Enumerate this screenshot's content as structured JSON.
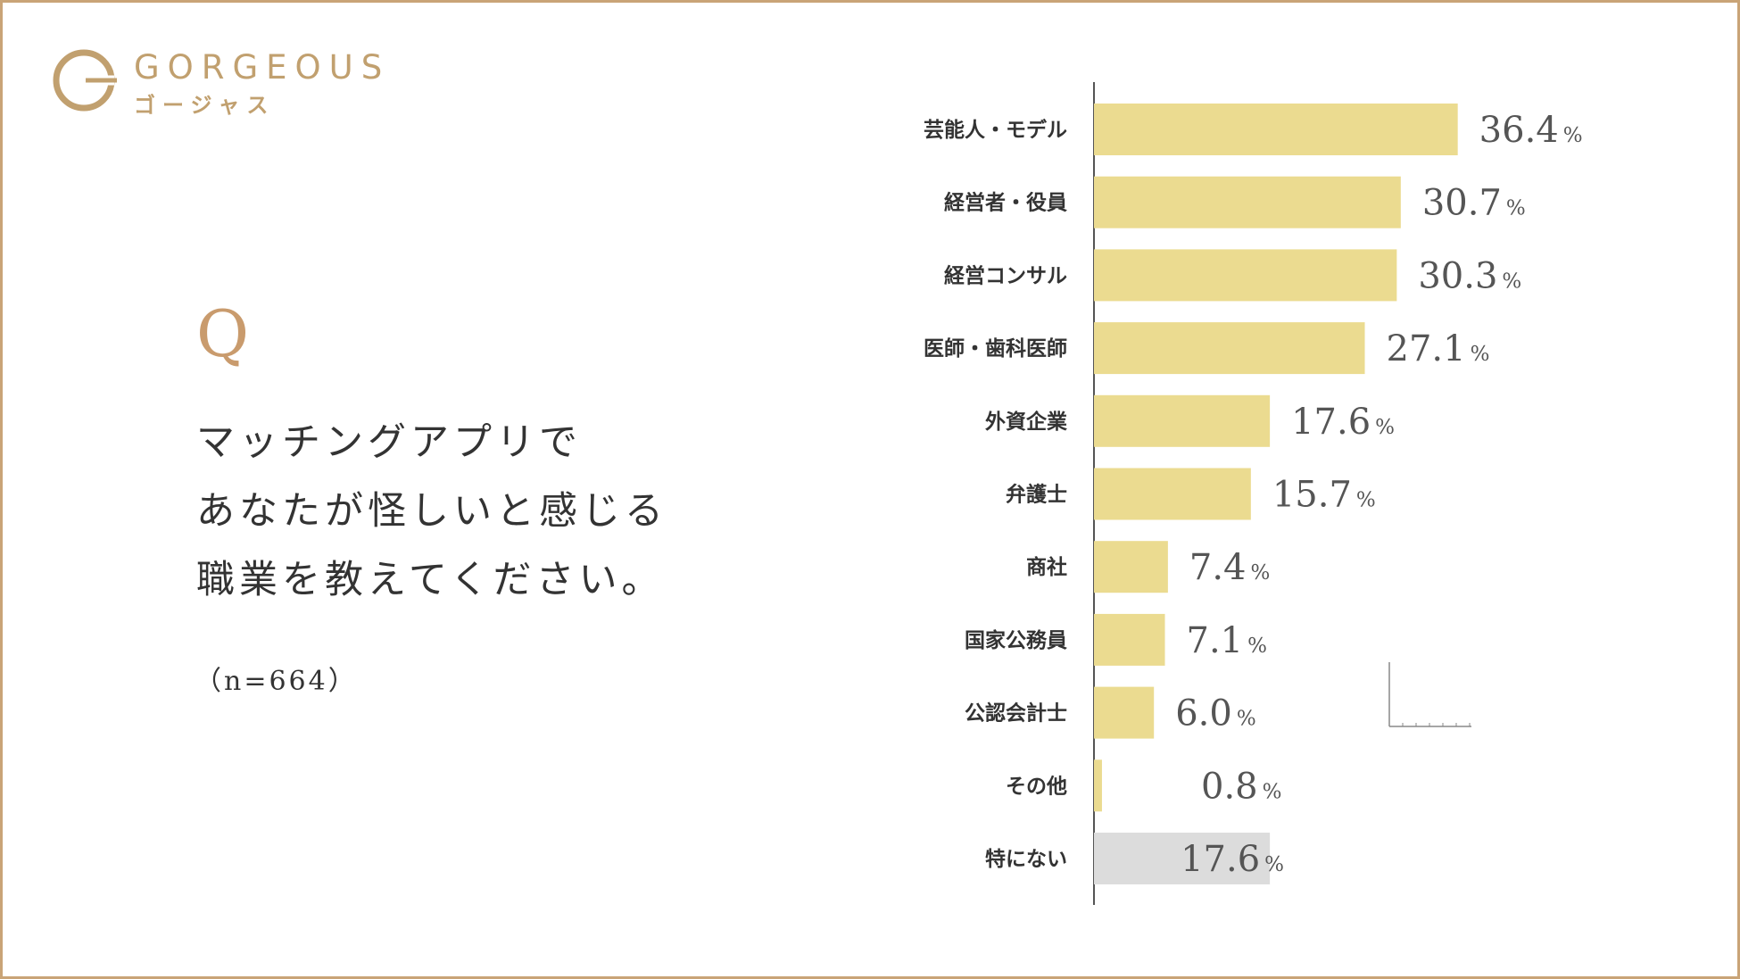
{
  "brand": {
    "name_en": "GORGEOUS",
    "name_ja": "ゴージャス",
    "logo_icon": "g-circle-logo-icon",
    "color": "#c1a06f"
  },
  "question": {
    "mark": "Q",
    "lines": [
      "マッチングアプリで",
      "あなたが怪しいと感じる",
      "職業を教えてください。"
    ],
    "sample": "（n=664）"
  },
  "colors": {
    "frame": "#c9a477",
    "bar": "#ebdb90",
    "bar_none": "#dcdcdc",
    "q_mark": "#c99b6d"
  },
  "chart_data": {
    "type": "bar",
    "orientation": "horizontal",
    "categories": [
      "芸能人・モデル",
      "経営者・役員",
      "経営コンサル",
      "医師・歯科医師",
      "外資企業",
      "弁護士",
      "商社",
      "国家公務員",
      "公認会計士",
      "その他",
      "特にない"
    ],
    "values": [
      36.4,
      30.7,
      30.3,
      27.1,
      17.6,
      15.7,
      7.4,
      7.1,
      6.0,
      0.8,
      17.6
    ],
    "value_labels": [
      "36.4",
      "30.7",
      "30.3",
      "27.1",
      "17.6",
      "15.7",
      "7.4",
      "7.1",
      "6.0",
      "0.8",
      "17.6"
    ],
    "unit": "%",
    "highlight_last_in_gray": true,
    "xlim": [
      0,
      40
    ],
    "grid": false,
    "legend": "none"
  }
}
